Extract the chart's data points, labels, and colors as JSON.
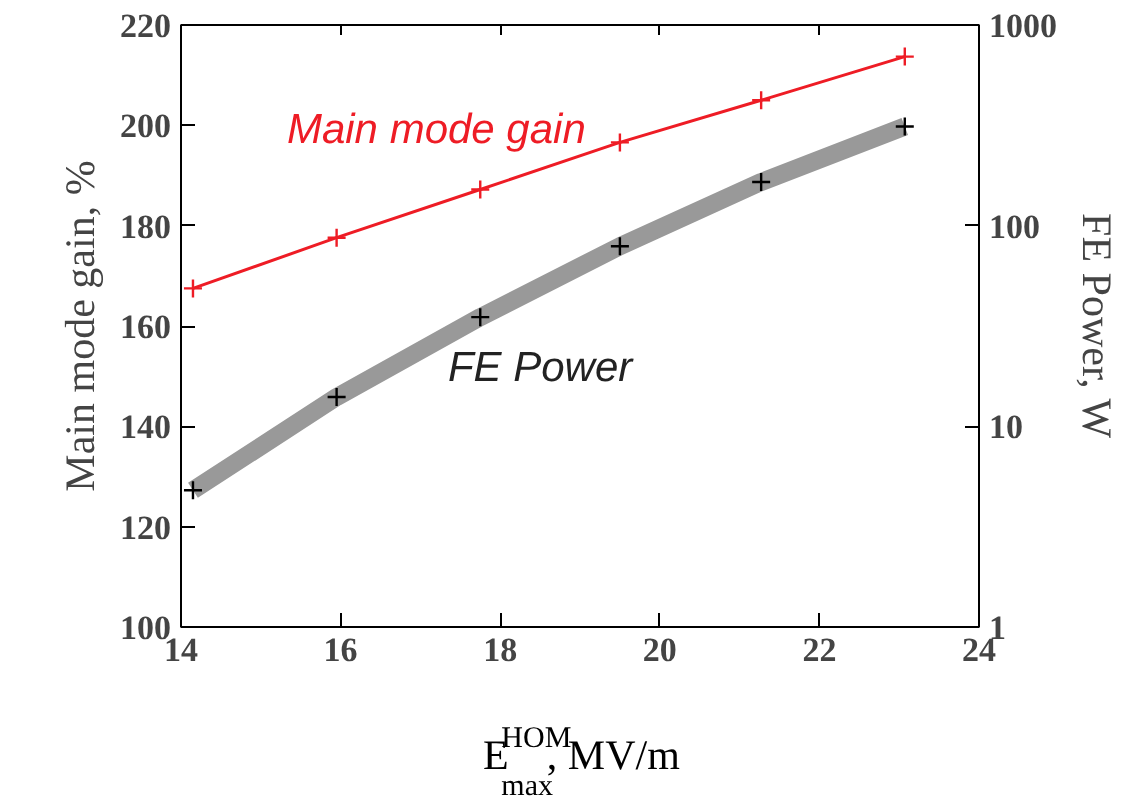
{
  "chart_data": {
    "type": "line",
    "xlabel": "E$^{HOM}$$_{max}$, MV/m",
    "ylabel": "Main mode gain, %",
    "y2label": "FE Power, W",
    "xlim": [
      14,
      24
    ],
    "xticks": [
      14,
      16,
      18,
      20,
      22,
      24
    ],
    "ylim": [
      100,
      220
    ],
    "yticks": [
      100,
      120,
      140,
      160,
      180,
      200,
      220
    ],
    "y2lim": [
      1,
      1000
    ],
    "y2ticks": [
      1,
      10,
      100,
      1000
    ],
    "log": "y2",
    "grid": false,
    "legend": false,
    "marker": "cross",
    "line_style": "solid",
    "series": [
      {
        "name": "Main mode gain",
        "color": "#ee1c25",
        "x": [
          14.15,
          15.95,
          17.75,
          19.5,
          21.27,
          23.07
        ],
        "values": [
          167.5,
          177.6,
          187.2,
          196.6,
          205,
          213.7
        ]
      },
      {
        "name": "FE Power",
        "color": "#999999",
        "axis": "y2",
        "x": [
          14.15,
          15.95,
          17.75,
          19.5,
          21.27,
          23.07
        ],
        "values": [
          4.8,
          14,
          35,
          79,
          165,
          312
        ]
      }
    ]
  }
}
